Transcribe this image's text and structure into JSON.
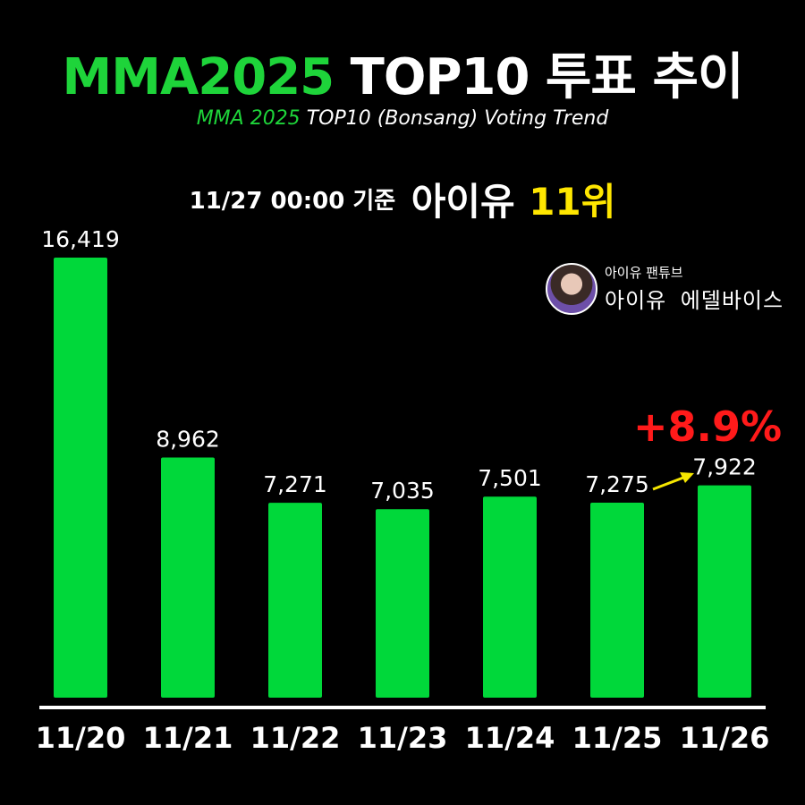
{
  "header": {
    "title_accent": "MMA2025",
    "title_rest": "TOP10 투표 추이",
    "subtitle_accent": "MMA 2025",
    "subtitle_rest": "TOP10 (Bonsang) Voting Trend",
    "basis_time": "11/27 00:00 기준",
    "artist": "아이유",
    "rank": "11위"
  },
  "channel": {
    "subtitle": "아이유 팬튜브",
    "name": "아이유 에델바이스"
  },
  "annotation": {
    "change_label": "+8.9%"
  },
  "colors": {
    "bar": "#00d83a",
    "title_accent": "#1ed43a",
    "rank": "#ffe600",
    "change": "#ff1a1a",
    "arrow": "#f5e600"
  },
  "chart_data": {
    "type": "bar",
    "categories": [
      "11/20",
      "11/21",
      "11/22",
      "11/23",
      "11/24",
      "11/25",
      "11/26"
    ],
    "values": [
      16419,
      8962,
      7271,
      7035,
      7501,
      7275,
      7922
    ],
    "value_labels": [
      "16,419",
      "8,962",
      "7,271",
      "7,035",
      "7,501",
      "7,275",
      "7,922"
    ],
    "ylim": [
      0,
      16419
    ],
    "grid": false,
    "legend": "none"
  }
}
